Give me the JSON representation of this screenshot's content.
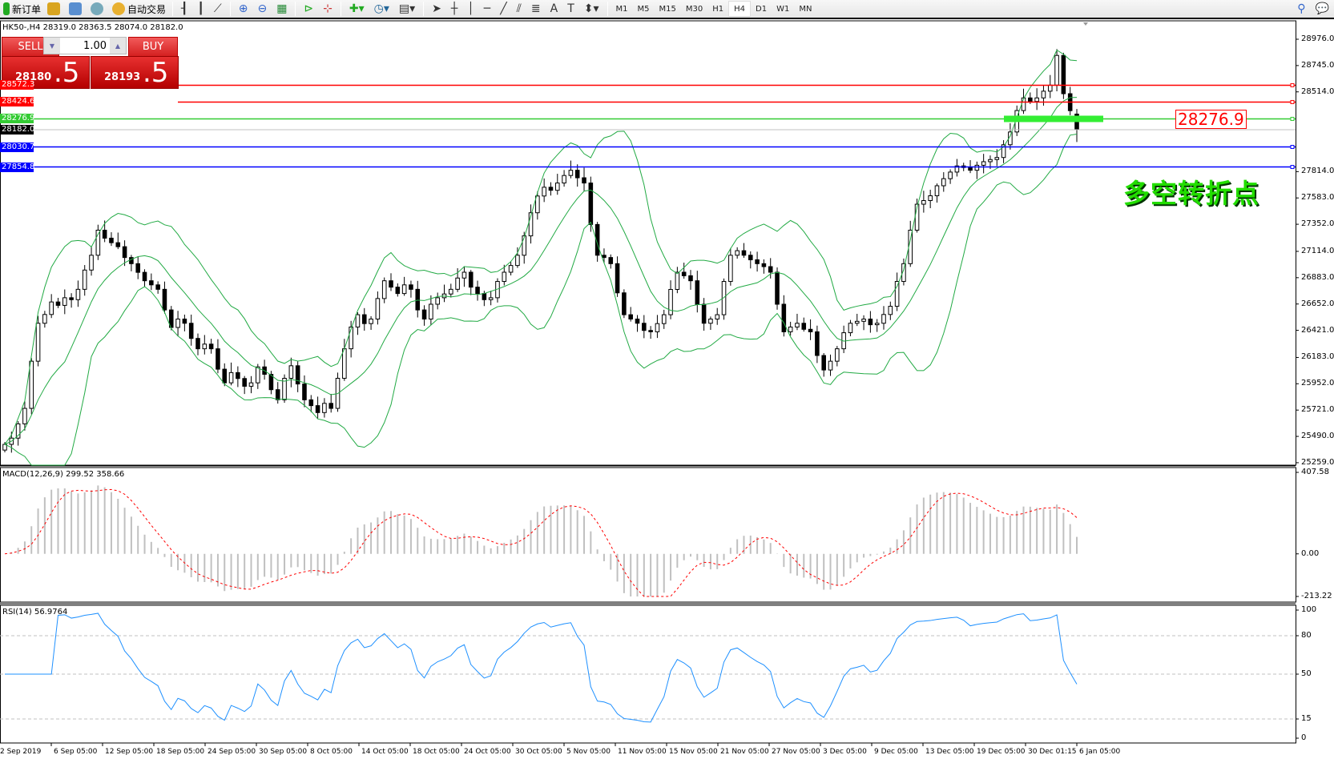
{
  "toolbar": {
    "new_order": "新订单",
    "auto_trading": "自动交易",
    "timeframes": [
      "M1",
      "M5",
      "M15",
      "M30",
      "H1",
      "H4",
      "D1",
      "W1",
      "MN"
    ],
    "active_timeframe": "H4"
  },
  "chart": {
    "title": "HK50-,H4  28319.0 28363.5 28074.0 28182.0"
  },
  "trade_panel": {
    "sell": "SELL",
    "buy": "BUY",
    "lots": "1.00",
    "sell_price_main": "28180",
    "sell_price_frac": ".5",
    "buy_price_main": "28193",
    "buy_price_frac": ".5"
  },
  "price_axis": [
    "28976.0",
    "28745.0",
    "28514.0",
    "27814.0",
    "27583.0",
    "27352.0",
    "27114.0",
    "26883.0",
    "26652.0",
    "26421.0",
    "26183.0",
    "25952.0",
    "25721.0",
    "25490.0",
    "25259.0"
  ],
  "hlines": [
    {
      "price": 28572.3,
      "label": "28572.3",
      "color": "#ff0000",
      "from_panel": true
    },
    {
      "price": 28424.6,
      "label": "28424.6",
      "color": "#ff0000",
      "from_panel": true
    },
    {
      "price": 28276.9,
      "label": "28276.9",
      "color": "#33cc33",
      "from_panel": false
    },
    {
      "price": 28030.7,
      "label": "28030.7",
      "color": "#0000ff",
      "from_panel": false
    },
    {
      "price": 27854.8,
      "label": "27854.8",
      "color": "#0000ff",
      "from_panel": false
    }
  ],
  "current_price": {
    "price": 28182.0,
    "label": "28182.0"
  },
  "annotation": {
    "price_label": "28276.9",
    "text": "多空转折点",
    "bar_color": "#33ee33"
  },
  "macd": {
    "label": "MACD(12,26,9) 299.52 358.66",
    "axis": [
      "407.58",
      "0.00",
      "-213.22"
    ],
    "range": [
      -213.22,
      407.58
    ]
  },
  "rsi": {
    "label": "RSI(14) 56.9764",
    "axis": [
      "100",
      "80",
      "50",
      "15",
      "0"
    ],
    "levels": [
      80,
      50,
      15
    ]
  },
  "time_axis": [
    "2 Sep 2019",
    "6 Sep 05:00",
    "12 Sep 05:00",
    "18 Sep 05:00",
    "24 Sep 05:00",
    "30 Sep 05:00",
    "8 Oct 05:00",
    "14 Oct 05:00",
    "18 Oct 05:00",
    "24 Oct 05:00",
    "30 Oct 05:00",
    "5 Nov 05:00",
    "11 Nov 05:00",
    "15 Nov 05:00",
    "21 Nov 05:00",
    "27 Nov 05:00",
    "3 Dec 05:00",
    "9 Dec 05:00",
    "13 Dec 05:00",
    "19 Dec 05:00",
    "30 Dec 01:15",
    "6 Jan 05:00"
  ],
  "chart_data": {
    "type": "candlestick",
    "symbol": "HK50-",
    "timeframe": "H4",
    "ylim": [
      25259,
      28976
    ],
    "closes": [
      25420,
      25475,
      25600,
      25736,
      26150,
      26483,
      26560,
      26670,
      26640,
      26707,
      26690,
      26781,
      26950,
      27080,
      27300,
      27230,
      27190,
      27155,
      27060,
      27006,
      26930,
      26856,
      26820,
      26781,
      26600,
      26446,
      26520,
      26483,
      26350,
      26259,
      26300,
      26259,
      26080,
      25960,
      26050,
      25998,
      25930,
      25960,
      26100,
      26035,
      25900,
      25811,
      26000,
      26110,
      25950,
      25811,
      25760,
      25699,
      25780,
      25736,
      26000,
      26259,
      26450,
      26558,
      26480,
      26520,
      26700,
      26856,
      26800,
      26744,
      26820,
      26781,
      26600,
      26520,
      26650,
      26707,
      26740,
      26781,
      26880,
      26931,
      26800,
      26744,
      26690,
      26707,
      26850,
      26931,
      26990,
      27080,
      27250,
      27453,
      27600,
      27677,
      27650,
      27714,
      27780,
      27826,
      27760,
      27714,
      27350,
      27080,
      27060,
      27006,
      26750,
      26558,
      26520,
      26483,
      26420,
      26408,
      26480,
      26558,
      26780,
      26931,
      26900,
      26856,
      26650,
      26483,
      26520,
      26558,
      26850,
      27080,
      27120,
      27080,
      27040,
      27006,
      26980,
      26931,
      26650,
      26408,
      26450,
      26483,
      26430,
      26408,
      26200,
      26073,
      26150,
      26259,
      26400,
      26483,
      26500,
      26520,
      26470,
      26483,
      26560,
      26632,
      26850,
      27006,
      27300,
      27528,
      27560,
      27602,
      27690,
      27752,
      27810,
      27864,
      27850,
      27826,
      27870,
      27901,
      27920,
      27938,
      28050,
      28162,
      28350,
      28461,
      28430,
      28461,
      28520,
      28573,
      28834,
      28498,
      28349,
      28182
    ],
    "last_bar": {
      "open": 28319.0,
      "high": 28363.5,
      "low": 28074.0,
      "close": 28182.0
    },
    "colors": {
      "candle": "#000000",
      "bands": "#22aa44",
      "macd_hist": "#c0c0c0",
      "macd_signal": "#ff0000",
      "rsi": "#1e90ff"
    }
  }
}
